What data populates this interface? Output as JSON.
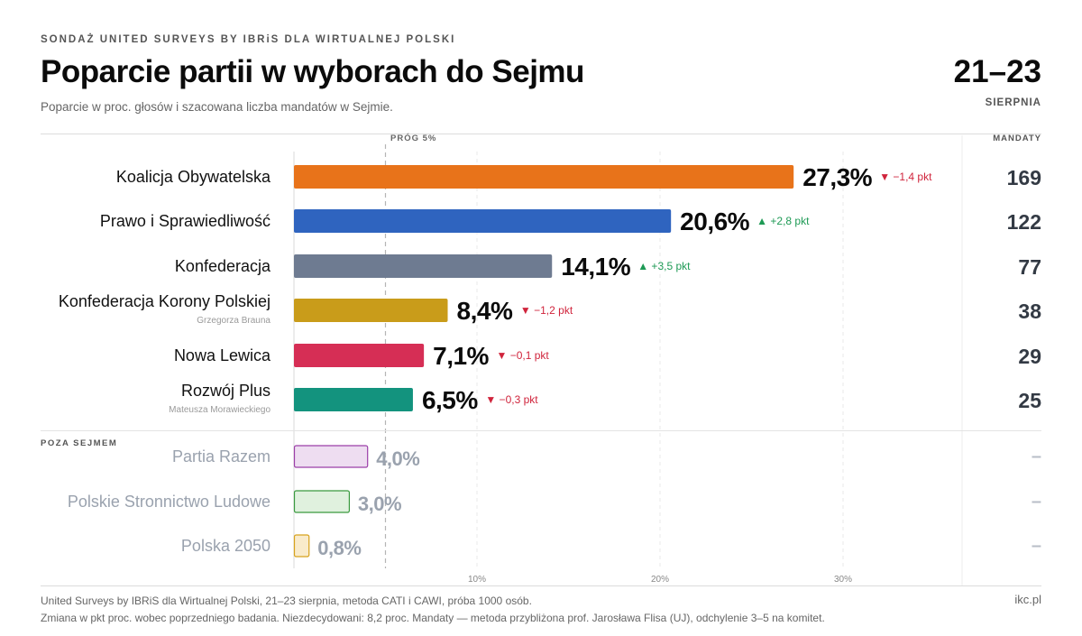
{
  "header": {
    "kicker": "SONDAŻ UNITED SURVEYS BY IBRiS DLA WIRTUALNEJ POLSKI",
    "title": "Poparcie partii w wyborach do Sejmu",
    "subtitle": "Poparcie w proc. głosów i szacowana liczba mandatów w Sejmie.",
    "date_range": "21–23",
    "date_month": "SIERPNIA"
  },
  "labels": {
    "mandaty": "MANDATY",
    "prog": "PRÓG 5%",
    "poza_sejmem": "POZA SEJMEM"
  },
  "footer": {
    "line1": "United Surveys by IBRiS dla Wirtualnej Polski, 21–23 sierpnia, metoda CATI i CAWI, próba 1000 osób.",
    "line2": "Zmiana w pkt proc. wobec poprzedniego badania. Niezdecydowani: 8,2 proc. Mandaty — metoda przybliżona prof. Jarosława Flisa (UJ), odchylenie 3–5 na komitet.",
    "source": "ikc.pl"
  },
  "chart_data": {
    "type": "bar",
    "orientation": "horizontal",
    "xlim": [
      0,
      30
    ],
    "xticks": [
      10,
      20,
      30
    ],
    "xtick_labels": [
      "10%",
      "20%",
      "30%"
    ],
    "threshold": 5,
    "grid": true,
    "categories": [
      "Koalicja Obywatelska",
      "Prawo i Sprawiedliwość",
      "Konfederacja",
      "Konfederacja Korony Polskiej",
      "Nowa Lewica",
      "Rozwój Plus",
      "Partia Razem",
      "Polskie Stronnictwo Ludowe",
      "Polska 2050"
    ],
    "series": [
      {
        "values": [
          27.3,
          20.6,
          14.1,
          8.4,
          7.1,
          6.5,
          4.0,
          3.0,
          0.8
        ]
      }
    ],
    "rows": [
      {
        "party": "Koalicja Obywatelska",
        "sub": "",
        "value": 27.3,
        "value_label": "27,3%",
        "change": "▼ −1,4 pkt",
        "dir": "down",
        "seats": "169",
        "color": "#E8731A",
        "in_sejm": true
      },
      {
        "party": "Prawo i Sprawiedliwość",
        "sub": "",
        "value": 20.6,
        "value_label": "20,6%",
        "change": "▲ +2,8 pkt",
        "dir": "up",
        "seats": "122",
        "color": "#2F64BF",
        "in_sejm": true
      },
      {
        "party": "Konfederacja",
        "sub": "",
        "value": 14.1,
        "value_label": "14,1%",
        "change": "▲ +3,5 pkt",
        "dir": "up",
        "seats": "77",
        "color": "#6E7B91",
        "in_sejm": true
      },
      {
        "party": "Konfederacja Korony Polskiej",
        "sub": "Grzegorza Brauna",
        "value": 8.4,
        "value_label": "8,4%",
        "change": "▼ −1,2 pkt",
        "dir": "down",
        "seats": "38",
        "color": "#C99C1A",
        "in_sejm": true
      },
      {
        "party": "Nowa Lewica",
        "sub": "",
        "value": 7.1,
        "value_label": "7,1%",
        "change": "▼ −0,1 pkt",
        "dir": "down",
        "seats": "29",
        "color": "#D62E55",
        "in_sejm": true
      },
      {
        "party": "Rozwój Plus",
        "sub": "Mateusza Morawieckiego",
        "value": 6.5,
        "value_label": "6,5%",
        "change": "▼ −0,3 pkt",
        "dir": "down",
        "seats": "25",
        "color": "#13937E",
        "in_sejm": true
      },
      {
        "party": "Partia Razem",
        "sub": "",
        "value": 4.0,
        "value_label": "4,0%",
        "change": "",
        "dir": "",
        "seats": "–",
        "color": "#9B3FA8",
        "fill": "#EEDDF1",
        "in_sejm": false
      },
      {
        "party": "Polskie Stronnictwo Ludowe",
        "sub": "",
        "value": 3.0,
        "value_label": "3,0%",
        "change": "",
        "dir": "",
        "seats": "–",
        "color": "#3A9A3F",
        "fill": "#E0F1DE",
        "in_sejm": false
      },
      {
        "party": "Polska 2050",
        "sub": "",
        "value": 0.8,
        "value_label": "0,8%",
        "change": "",
        "dir": "",
        "seats": "–",
        "color": "#D7A21C",
        "fill": "#F9EBCB",
        "in_sejm": false
      }
    ],
    "colors": {
      "down": "#D0243C",
      "up": "#1E9A55",
      "muted_text": "#9AA2AE",
      "seats_text": "#333A44"
    }
  }
}
